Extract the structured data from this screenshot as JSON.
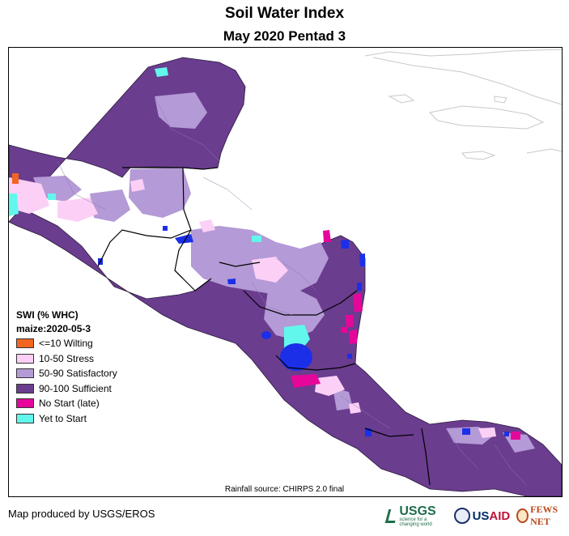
{
  "header": {
    "title": "Soil Water Index",
    "subtitle": "May 2020 Pentad 3"
  },
  "legend": {
    "title": "SWI (% WHC)",
    "subtitle": "maize:2020-05-3",
    "items": [
      {
        "label": "<=10 Wilting",
        "color": "#f26522"
      },
      {
        "label": "10-50 Stress",
        "color": "#fcd0f6"
      },
      {
        "label": "50-90 Satisfactory",
        "color": "#b49ad6"
      },
      {
        "label": "90-100 Sufficient",
        "color": "#6a3d8f"
      },
      {
        "label": "No Start (late)",
        "color": "#e6079a"
      },
      {
        "label": "Yet to Start",
        "color": "#62f7ec"
      }
    ]
  },
  "map": {
    "water_color": "#1b2fe8",
    "border_color": "#000000"
  },
  "footer": {
    "source": "Rainfall source: CHIRPS 2.0 final",
    "credit": "Map produced by USGS/EROS",
    "logos": {
      "usgs": "USGS",
      "usgs_tagline": "science for a changing world",
      "usaid_us": "US",
      "usaid_aid": "AID",
      "fews": "FEWS NET"
    }
  }
}
